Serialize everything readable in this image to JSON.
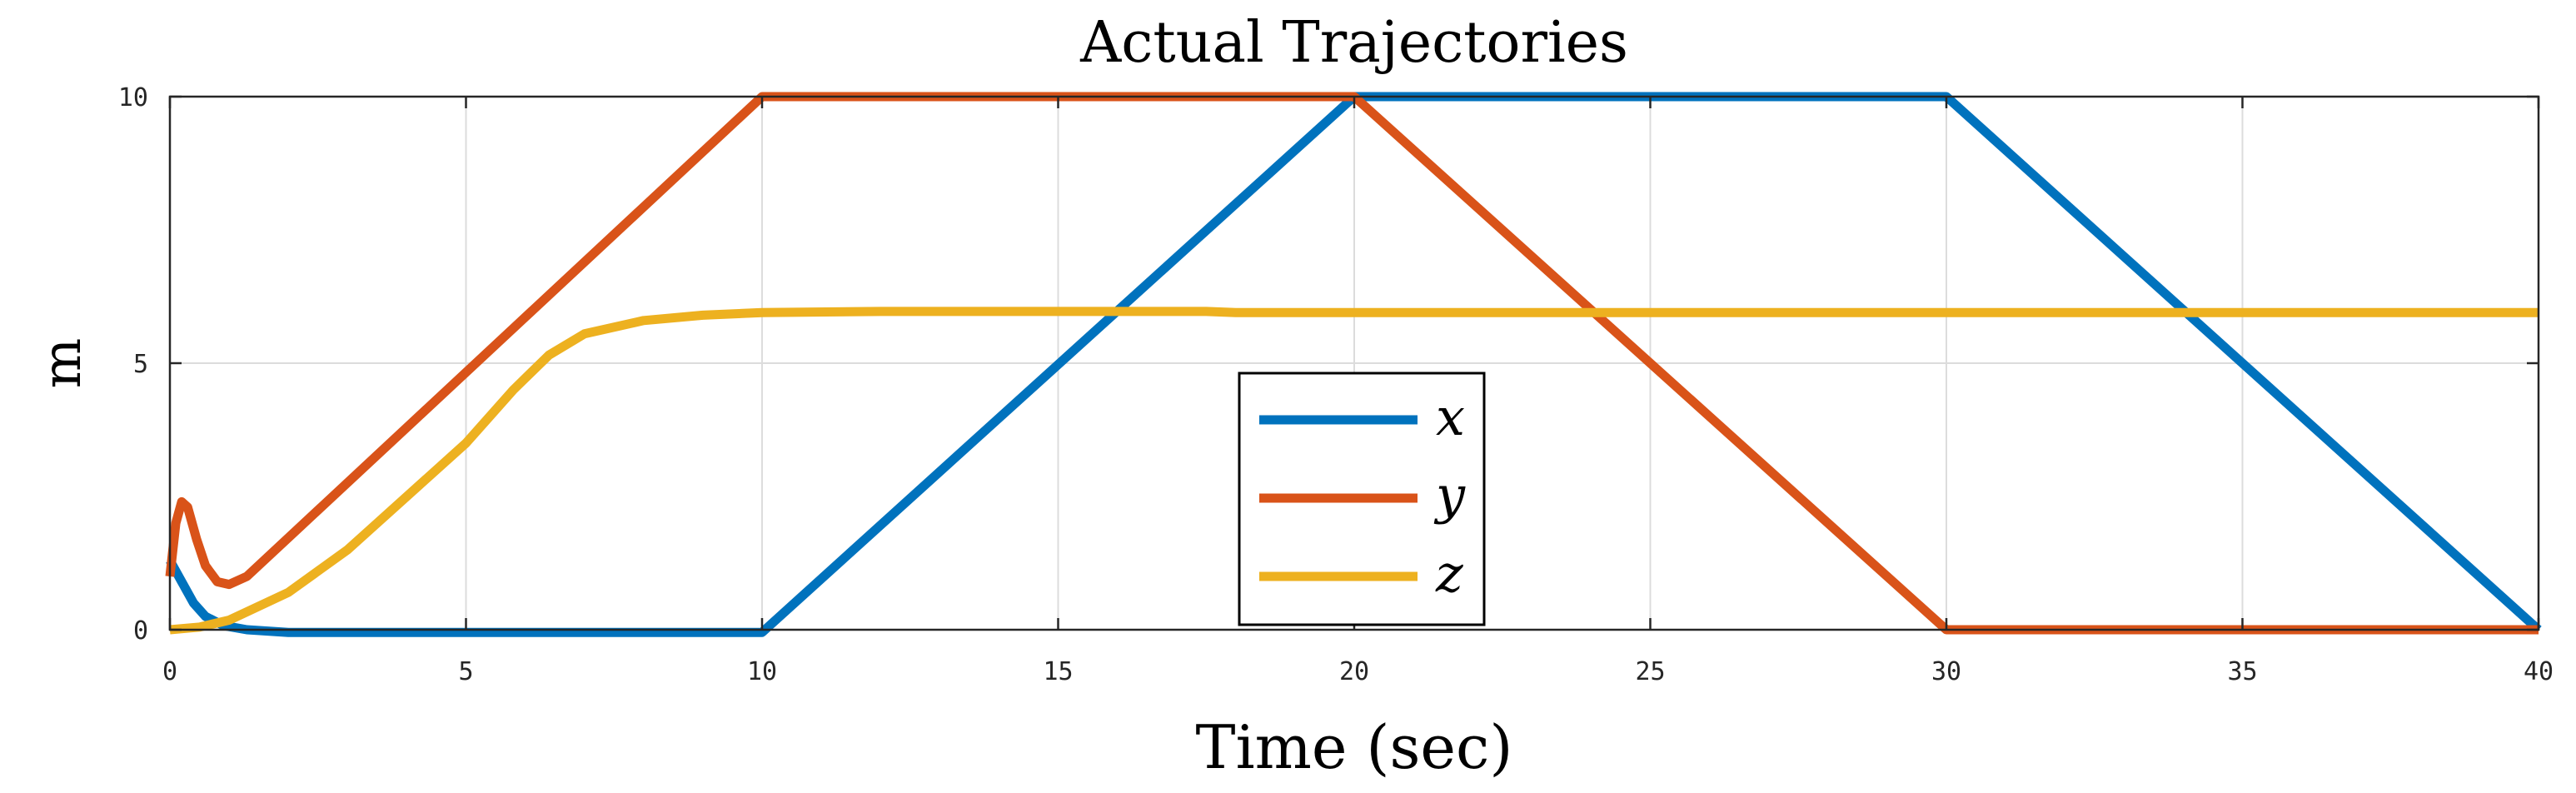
{
  "chart_data": {
    "type": "line",
    "title": "Actual Trajectories",
    "xlabel": "Time (sec)",
    "ylabel": "m",
    "xlim": [
      0,
      40
    ],
    "ylim": [
      0,
      10
    ],
    "xticks": [
      0,
      5,
      10,
      15,
      20,
      25,
      30,
      35,
      40
    ],
    "yticks": [
      0,
      5,
      10
    ],
    "grid": true,
    "legend_position": "center-bottom",
    "series": [
      {
        "name": "x",
        "color": "#0072BD",
        "points": [
          [
            0,
            1.3
          ],
          [
            0.2,
            0.9
          ],
          [
            0.4,
            0.5
          ],
          [
            0.6,
            0.25
          ],
          [
            0.9,
            0.08
          ],
          [
            1.3,
            0.0
          ],
          [
            2,
            -0.05
          ],
          [
            10,
            -0.05
          ],
          [
            20,
            10
          ],
          [
            30,
            10
          ],
          [
            40,
            0
          ]
        ]
      },
      {
        "name": "y",
        "color": "#D95319",
        "points": [
          [
            0,
            1.0
          ],
          [
            0.1,
            2.0
          ],
          [
            0.2,
            2.4
          ],
          [
            0.3,
            2.3
          ],
          [
            0.45,
            1.7
          ],
          [
            0.6,
            1.2
          ],
          [
            0.8,
            0.9
          ],
          [
            1.0,
            0.85
          ],
          [
            1.3,
            1.0
          ],
          [
            10,
            10
          ],
          [
            20,
            10
          ],
          [
            30,
            0
          ],
          [
            40,
            0
          ]
        ]
      },
      {
        "name": "z",
        "color": "#EDB120",
        "points": [
          [
            0,
            0.0
          ],
          [
            0.5,
            0.05
          ],
          [
            1,
            0.18
          ],
          [
            2,
            0.7
          ],
          [
            3,
            1.5
          ],
          [
            4,
            2.5
          ],
          [
            5,
            3.5
          ],
          [
            5.8,
            4.5
          ],
          [
            6.4,
            5.15
          ],
          [
            7,
            5.55
          ],
          [
            8,
            5.8
          ],
          [
            9,
            5.9
          ],
          [
            10,
            5.95
          ],
          [
            12,
            5.97
          ],
          [
            17.5,
            5.97
          ],
          [
            18,
            5.95
          ],
          [
            40,
            5.95
          ]
        ]
      }
    ]
  }
}
